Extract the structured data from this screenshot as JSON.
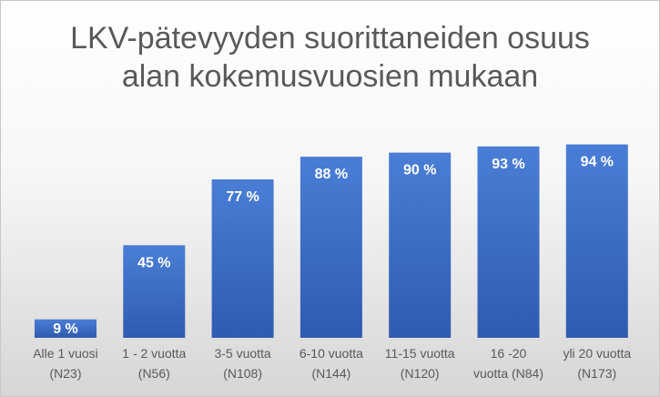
{
  "chart_data": {
    "type": "bar",
    "title_lines": [
      "LKV-pätevyyden suorittaneiden osuus",
      "alan kokemusvuosien mukaan"
    ],
    "categories": [
      [
        "Alle 1 vuosi",
        "(N23)"
      ],
      [
        "1 - 2 vuotta",
        "(N56)"
      ],
      [
        "3-5 vuotta",
        "(N108)"
      ],
      [
        "6-10 vuotta",
        "(N144)"
      ],
      [
        "11-15 vuotta",
        "(N120)"
      ],
      [
        "16 -20",
        "vuotta (N84)"
      ],
      [
        "yli 20 vuotta",
        "(N173)"
      ]
    ],
    "values": [
      9,
      45,
      77,
      88,
      90,
      93,
      94
    ],
    "value_labels": [
      "9 %",
      "45 %",
      "77 %",
      "88 %",
      "90 %",
      "93 %",
      "94 %"
    ],
    "unit": "%",
    "ylim": [
      0,
      100
    ],
    "grid": false,
    "legend": "none",
    "bar_color": "#4472c4"
  }
}
